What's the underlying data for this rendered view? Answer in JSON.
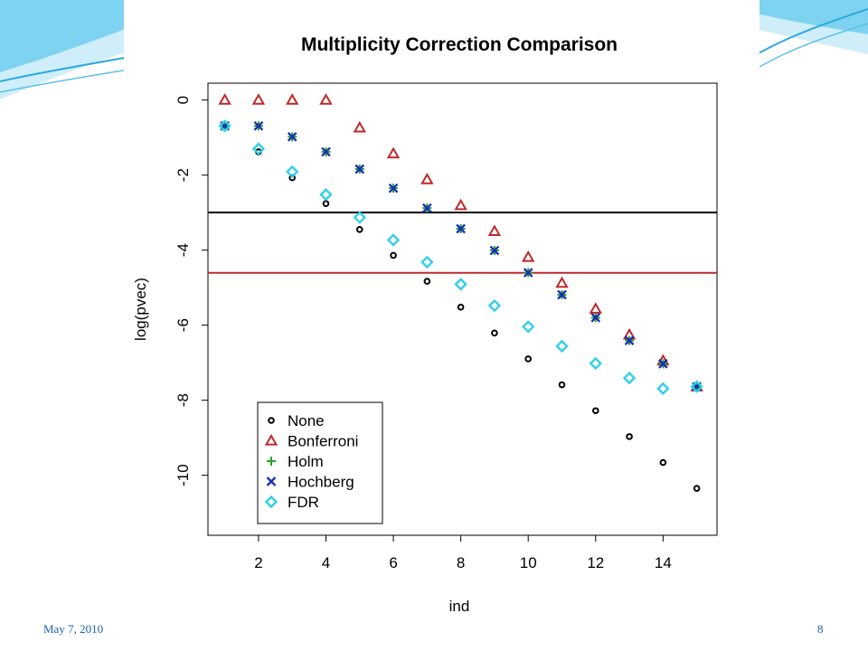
{
  "footer": {
    "date": "May 7, 2010",
    "page": "8"
  },
  "colors": {
    "none": "#000000",
    "bonferroni": "#c0282c",
    "holm": "#22aa22",
    "hochberg": "#1c2db8",
    "fdr": "#30d0e8",
    "accent": "#4ab8e0"
  },
  "chart_data": {
    "type": "scatter",
    "title": "Multiplicity Correction Comparison",
    "xlabel": "ind",
    "ylabel": "log(pvec)",
    "xlim": [
      0.5,
      15.6
    ],
    "ylim": [
      -11.6,
      0.45
    ],
    "xticks": [
      2,
      4,
      6,
      8,
      10,
      12,
      14
    ],
    "yticks": [
      0,
      -2,
      -4,
      -6,
      -8,
      -10
    ],
    "hlines": [
      {
        "y": -2.996,
        "color": "#000000"
      },
      {
        "y": -4.605,
        "color": "#c0282c"
      }
    ],
    "legend": {
      "position": "bottom-left",
      "entries": [
        "None",
        "Bonferroni",
        "Holm",
        "Hochberg",
        "FDR"
      ]
    },
    "x": [
      1,
      2,
      3,
      4,
      5,
      6,
      7,
      8,
      9,
      10,
      11,
      12,
      13,
      14,
      15
    ],
    "series": [
      {
        "name": "None",
        "marker": "circle",
        "color": "#000000",
        "values": [
          -0.69,
          -1.38,
          -2.07,
          -2.76,
          -3.45,
          -4.14,
          -4.83,
          -5.52,
          -6.21,
          -6.9,
          -7.59,
          -8.28,
          -8.97,
          -9.66,
          -10.35
        ]
      },
      {
        "name": "Bonferroni",
        "marker": "triangle",
        "color": "#c0282c",
        "values": [
          0,
          0,
          0,
          0,
          -0.74,
          -1.43,
          -2.12,
          -2.81,
          -3.5,
          -4.19,
          -4.88,
          -5.57,
          -6.26,
          -6.95,
          -7.64
        ]
      },
      {
        "name": "Holm",
        "marker": "plus",
        "color": "#22aa22",
        "values": [
          -0.69,
          -0.69,
          -0.98,
          -1.38,
          -1.84,
          -2.35,
          -2.88,
          -3.43,
          -4.01,
          -4.6,
          -5.19,
          -5.8,
          -6.41,
          -7.03,
          -7.64
        ]
      },
      {
        "name": "Hochberg",
        "marker": "x",
        "color": "#1c2db8",
        "values": [
          -0.69,
          -0.69,
          -0.98,
          -1.38,
          -1.84,
          -2.35,
          -2.88,
          -3.43,
          -4.01,
          -4.6,
          -5.19,
          -5.8,
          -6.41,
          -7.03,
          -7.64
        ]
      },
      {
        "name": "FDR",
        "marker": "diamond",
        "color": "#30d0e8",
        "values": [
          -0.69,
          -1.3,
          -1.91,
          -2.52,
          -3.13,
          -3.73,
          -4.32,
          -4.91,
          -5.48,
          -6.04,
          -6.56,
          -7.02,
          -7.41,
          -7.69,
          -7.64
        ]
      }
    ]
  }
}
